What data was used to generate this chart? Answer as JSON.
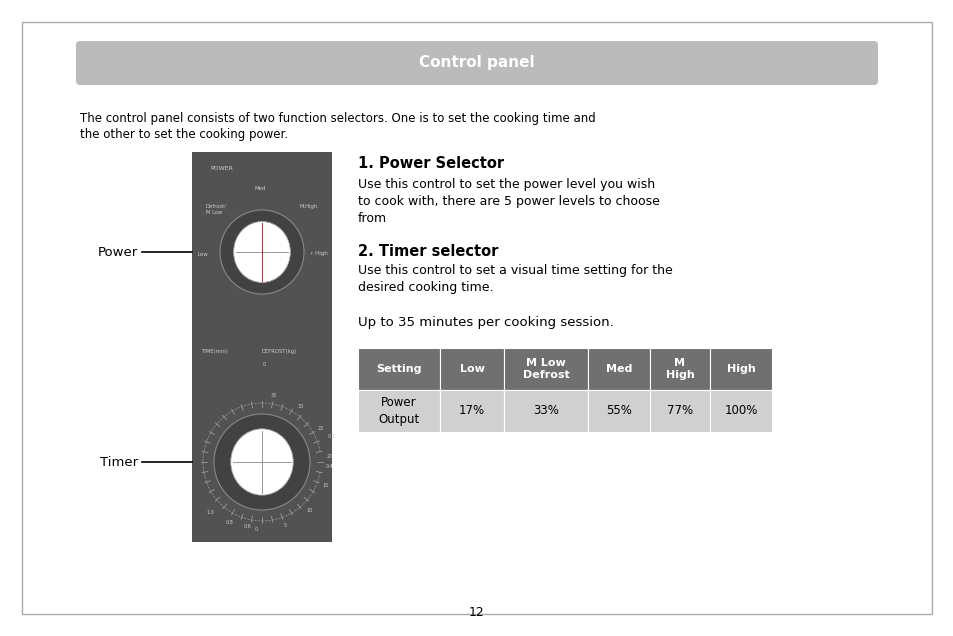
{
  "title": "Control panel",
  "title_bg": "#bbbbbb",
  "title_color": "#ffffff",
  "title_fontsize": 11,
  "page_bg": "#ffffff",
  "border_color": "#aaaaaa",
  "intro_line1": "The control panel consists of two function selectors. One is to set the cooking time and",
  "intro_line2": "the other to set the cooking power.",
  "section1_title": "1. Power Selector",
  "section1_body": "Use this control to set the power level you wish\nto cook with, there are 5 power levels to choose\nfrom",
  "section2_title": "2. Timer selector",
  "section2_body": "Use this control to set a visual time setting for the\ndesired cooking time.",
  "section3_body": "Up to 35 minutes per cooking session.",
  "panel_bg": "#525252",
  "label_power": "Power",
  "label_timer": "Timer",
  "table_header_bg": "#707070",
  "table_header_color": "#ffffff",
  "table_row_bg": "#d0d0d0",
  "table_row_color": "#000000",
  "table_headers": [
    "Setting",
    "Low",
    "M Low\nDefrost",
    "Med",
    "M\nHigh",
    "High"
  ],
  "table_values": [
    "Power\nOutput",
    "17%",
    "33%",
    "55%",
    "77%",
    "100%"
  ],
  "page_number": "12"
}
